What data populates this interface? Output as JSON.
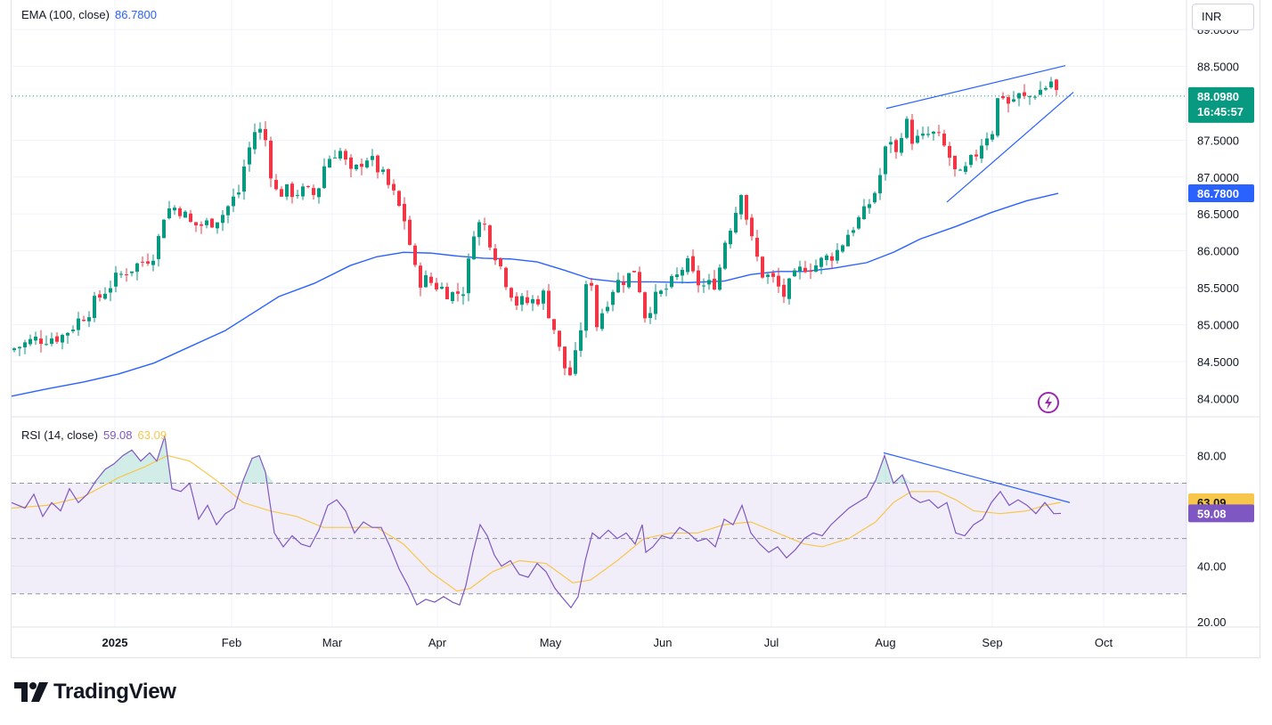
{
  "ema_legend": {
    "label": "EMA (100, close)",
    "value": "86.7800"
  },
  "rsi_legend": {
    "label": "RSI (14, close)",
    "value1": "59.08",
    "value2": "63.09"
  },
  "currency": "INR",
  "brand": "TradingView",
  "colors": {
    "up": "#089981",
    "down": "#f23645",
    "ema": "#2962ff",
    "rsi": "#7e57c2",
    "rsi_ma": "#f7c64b"
  },
  "price_panel": {
    "y_ticks": [
      "89.0000",
      "88.5000",
      "87.5000",
      "87.0000",
      "86.5000",
      "86.0000",
      "85.5000",
      "85.0000",
      "84.5000",
      "84.0000"
    ],
    "y_tick_values": [
      89.0,
      88.5,
      87.5,
      87.0,
      86.5,
      86.0,
      85.5,
      85.0,
      84.5,
      84.0
    ],
    "last_price": "88.0980",
    "countdown": "16:45:57",
    "ema_tag": "86.7800"
  },
  "rsi_panel": {
    "y_ticks": [
      "80.00",
      "40.00",
      "20.00"
    ],
    "y_tick_values": [
      80,
      40,
      20
    ],
    "tag_rsi": "59.08",
    "tag_ma": "63.09"
  },
  "x_axis": {
    "labels": [
      "2025",
      "Feb",
      "Mar",
      "Apr",
      "May",
      "Jun",
      "Jul",
      "Aug",
      "Sep",
      "Oct"
    ]
  },
  "chart_data": {
    "type": "candlestick",
    "ylim": [
      83.75,
      89.4
    ],
    "series": [
      {
        "name": "EMA (100, close)",
        "points": [
          [
            0,
            84.03
          ],
          [
            40,
            84.13
          ],
          [
            80,
            84.22
          ],
          [
            120,
            84.33
          ],
          [
            160,
            84.48
          ],
          [
            200,
            84.7
          ],
          [
            240,
            84.92
          ],
          [
            270,
            85.15
          ],
          [
            300,
            85.38
          ],
          [
            340,
            85.56
          ],
          [
            380,
            85.8
          ],
          [
            410,
            85.92
          ],
          [
            440,
            85.98
          ],
          [
            470,
            85.97
          ],
          [
            500,
            85.93
          ],
          [
            530,
            85.9
          ],
          [
            560,
            85.89
          ],
          [
            590,
            85.85
          ],
          [
            620,
            85.74
          ],
          [
            650,
            85.62
          ],
          [
            680,
            85.58
          ],
          [
            720,
            85.58
          ],
          [
            760,
            85.57
          ],
          [
            800,
            85.59
          ],
          [
            830,
            85.68
          ],
          [
            860,
            85.72
          ],
          [
            890,
            85.72
          ],
          [
            920,
            85.76
          ],
          [
            960,
            85.84
          ],
          [
            990,
            85.98
          ],
          [
            1020,
            86.16
          ],
          [
            1060,
            86.33
          ],
          [
            1100,
            86.52
          ],
          [
            1140,
            86.68
          ],
          [
            1175,
            86.78
          ]
        ]
      },
      {
        "name": "RSI (14, close)",
        "points": [
          [
            0,
            63
          ],
          [
            15,
            61
          ],
          [
            25,
            66
          ],
          [
            35,
            58
          ],
          [
            45,
            63
          ],
          [
            55,
            60
          ],
          [
            65,
            68
          ],
          [
            75,
            63
          ],
          [
            85,
            66
          ],
          [
            95,
            71
          ],
          [
            105,
            75
          ],
          [
            115,
            77
          ],
          [
            125,
            80
          ],
          [
            135,
            82
          ],
          [
            145,
            78
          ],
          [
            155,
            81
          ],
          [
            163,
            78
          ],
          [
            172,
            87
          ],
          [
            180,
            68
          ],
          [
            190,
            67
          ],
          [
            200,
            70
          ],
          [
            210,
            57
          ],
          [
            220,
            62
          ],
          [
            230,
            55
          ],
          [
            240,
            59
          ],
          [
            250,
            61
          ],
          [
            260,
            71
          ],
          [
            270,
            79
          ],
          [
            278,
            80
          ],
          [
            285,
            74
          ],
          [
            295,
            52
          ],
          [
            305,
            47
          ],
          [
            315,
            51
          ],
          [
            325,
            48
          ],
          [
            335,
            47
          ],
          [
            345,
            53
          ],
          [
            355,
            62
          ],
          [
            365,
            64
          ],
          [
            375,
            60
          ],
          [
            385,
            52
          ],
          [
            395,
            56
          ],
          [
            405,
            54
          ],
          [
            415,
            54
          ],
          [
            425,
            47
          ],
          [
            435,
            39
          ],
          [
            445,
            33
          ],
          [
            455,
            26
          ],
          [
            465,
            28
          ],
          [
            475,
            27
          ],
          [
            485,
            29
          ],
          [
            495,
            27
          ],
          [
            503,
            26
          ],
          [
            510,
            33
          ],
          [
            518,
            45
          ],
          [
            526,
            55
          ],
          [
            534,
            51
          ],
          [
            542,
            44
          ],
          [
            550,
            40
          ],
          [
            560,
            42
          ],
          [
            570,
            37
          ],
          [
            580,
            36
          ],
          [
            590,
            41
          ],
          [
            600,
            38
          ],
          [
            610,
            32
          ],
          [
            620,
            28
          ],
          [
            628,
            25
          ],
          [
            636,
            29
          ],
          [
            644,
            42
          ],
          [
            652,
            52
          ],
          [
            660,
            50
          ],
          [
            670,
            53
          ],
          [
            680,
            50
          ],
          [
            690,
            52
          ],
          [
            700,
            48
          ],
          [
            708,
            55
          ],
          [
            712,
            45
          ],
          [
            720,
            47
          ],
          [
            730,
            51
          ],
          [
            740,
            50
          ],
          [
            750,
            54
          ],
          [
            760,
            52
          ],
          [
            770,
            49
          ],
          [
            780,
            50
          ],
          [
            790,
            47
          ],
          [
            800,
            57
          ],
          [
            810,
            55
          ],
          [
            820,
            62
          ],
          [
            830,
            52
          ],
          [
            840,
            48
          ],
          [
            850,
            45
          ],
          [
            860,
            47
          ],
          [
            870,
            43
          ],
          [
            880,
            46
          ],
          [
            890,
            50
          ],
          [
            900,
            52
          ],
          [
            910,
            51
          ],
          [
            920,
            55
          ],
          [
            930,
            58
          ],
          [
            940,
            61
          ],
          [
            950,
            63
          ],
          [
            960,
            65
          ],
          [
            970,
            71
          ],
          [
            980,
            80
          ],
          [
            990,
            70
          ],
          [
            1000,
            73
          ],
          [
            1010,
            65
          ],
          [
            1020,
            63
          ],
          [
            1030,
            64
          ],
          [
            1040,
            61
          ],
          [
            1050,
            63
          ],
          [
            1060,
            52
          ],
          [
            1070,
            51
          ],
          [
            1080,
            55
          ],
          [
            1090,
            57
          ],
          [
            1100,
            63
          ],
          [
            1110,
            67
          ],
          [
            1120,
            62
          ],
          [
            1130,
            64
          ],
          [
            1140,
            62
          ],
          [
            1150,
            59
          ],
          [
            1160,
            63
          ],
          [
            1170,
            59
          ],
          [
            1178,
            59.08
          ]
        ]
      },
      {
        "name": "RSI MA",
        "points": [
          [
            0,
            61
          ],
          [
            40,
            62
          ],
          [
            80,
            65
          ],
          [
            120,
            72
          ],
          [
            150,
            76
          ],
          [
            175,
            80
          ],
          [
            200,
            78
          ],
          [
            230,
            71
          ],
          [
            260,
            63
          ],
          [
            290,
            60
          ],
          [
            320,
            58
          ],
          [
            350,
            54
          ],
          [
            380,
            54
          ],
          [
            410,
            54
          ],
          [
            440,
            48
          ],
          [
            470,
            38
          ],
          [
            500,
            31
          ],
          [
            515,
            32
          ],
          [
            540,
            38
          ],
          [
            570,
            42
          ],
          [
            600,
            41
          ],
          [
            630,
            34
          ],
          [
            650,
            35
          ],
          [
            680,
            42
          ],
          [
            710,
            50
          ],
          [
            740,
            52
          ],
          [
            770,
            52
          ],
          [
            800,
            55
          ],
          [
            830,
            56
          ],
          [
            860,
            52
          ],
          [
            890,
            48
          ],
          [
            910,
            47
          ],
          [
            940,
            50
          ],
          [
            970,
            56
          ],
          [
            990,
            63
          ],
          [
            1010,
            67
          ],
          [
            1040,
            67
          ],
          [
            1060,
            64
          ],
          [
            1080,
            60
          ],
          [
            1110,
            59
          ],
          [
            1140,
            60
          ],
          [
            1160,
            62
          ],
          [
            1178,
            63.09
          ]
        ]
      }
    ],
    "rsi_ylim": [
      18,
      94
    ],
    "trendlines": [
      [
        [
          982,
          87.93
        ],
        [
          1183,
          88.51
        ]
      ],
      [
        [
          1050,
          86.66
        ],
        [
          1192,
          88.15
        ]
      ],
      [
        [
          979,
          81
        ],
        [
          1188,
          63
        ]
      ]
    ]
  }
}
